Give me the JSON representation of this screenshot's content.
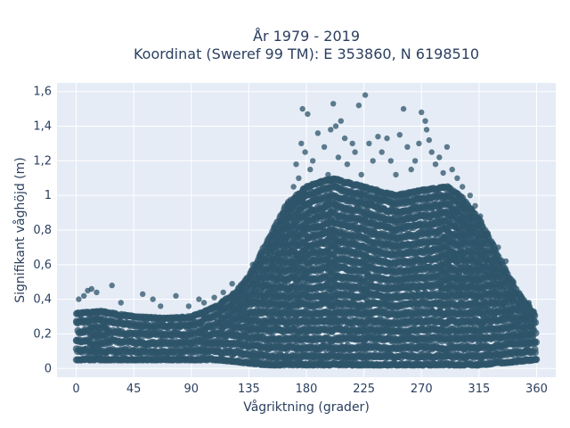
{
  "chart_data": {
    "type": "scatter",
    "title": "År 1979 - 2019",
    "subtitle": "Koordinat (Sweref 99 TM): E 353860, N 6198510",
    "xlabel": "Vågriktning (grader)",
    "ylabel": "Signifikant våghöjd (m)",
    "xlim": [
      -15,
      375
    ],
    "ylim": [
      -0.05,
      1.65
    ],
    "x_ticks": [
      0,
      45,
      90,
      135,
      180,
      225,
      270,
      315,
      360
    ],
    "x_tick_labels": [
      "0",
      "45",
      "90",
      "135",
      "180",
      "225",
      "270",
      "315",
      "360"
    ],
    "y_ticks": [
      0,
      0.2,
      0.4,
      0.6,
      0.8,
      1.0,
      1.2,
      1.4,
      1.6
    ],
    "y_tick_labels": [
      "0",
      "0,2",
      "0,4",
      "0,6",
      "0,8",
      "1",
      "1,2",
      "1,4",
      "1,6"
    ],
    "grid": true,
    "marker_color": "#2e5469",
    "background_color": "#e5ecf6",
    "envelope": {
      "x": [
        0,
        20,
        45,
        70,
        90,
        110,
        125,
        135,
        150,
        165,
        180,
        200,
        225,
        250,
        270,
        290,
        300,
        315,
        330,
        345,
        360
      ],
      "y_min": [
        0.05,
        0.05,
        0.05,
        0.05,
        0.05,
        0.05,
        0.04,
        0.03,
        0.02,
        0.02,
        0.02,
        0.02,
        0.02,
        0.02,
        0.02,
        0.02,
        0.02,
        0.02,
        0.03,
        0.04,
        0.05
      ],
      "y_max": [
        0.32,
        0.33,
        0.3,
        0.29,
        0.3,
        0.36,
        0.44,
        0.53,
        0.74,
        0.95,
        1.05,
        1.1,
        1.05,
        1.0,
        1.03,
        1.05,
        1.0,
        0.86,
        0.65,
        0.44,
        0.3
      ]
    },
    "outliers": [
      {
        "x": 2,
        "y": 0.4
      },
      {
        "x": 6,
        "y": 0.42
      },
      {
        "x": 9,
        "y": 0.45
      },
      {
        "x": 12,
        "y": 0.46
      },
      {
        "x": 16,
        "y": 0.44
      },
      {
        "x": 28,
        "y": 0.48
      },
      {
        "x": 35,
        "y": 0.38
      },
      {
        "x": 52,
        "y": 0.43
      },
      {
        "x": 60,
        "y": 0.4
      },
      {
        "x": 66,
        "y": 0.36
      },
      {
        "x": 78,
        "y": 0.42
      },
      {
        "x": 88,
        "y": 0.36
      },
      {
        "x": 96,
        "y": 0.4
      },
      {
        "x": 100,
        "y": 0.38
      },
      {
        "x": 108,
        "y": 0.41
      },
      {
        "x": 115,
        "y": 0.44
      },
      {
        "x": 122,
        "y": 0.49
      },
      {
        "x": 138,
        "y": 0.6
      },
      {
        "x": 144,
        "y": 0.64
      },
      {
        "x": 152,
        "y": 0.7
      },
      {
        "x": 156,
        "y": 0.76
      },
      {
        "x": 162,
        "y": 0.86
      },
      {
        "x": 168,
        "y": 0.95
      },
      {
        "x": 170,
        "y": 1.05
      },
      {
        "x": 172,
        "y": 1.18
      },
      {
        "x": 174,
        "y": 1.1
      },
      {
        "x": 176,
        "y": 1.3
      },
      {
        "x": 177,
        "y": 1.5
      },
      {
        "x": 179,
        "y": 1.25
      },
      {
        "x": 181,
        "y": 1.47
      },
      {
        "x": 183,
        "y": 1.15
      },
      {
        "x": 185,
        "y": 1.2
      },
      {
        "x": 189,
        "y": 1.36
      },
      {
        "x": 191,
        "y": 1.08
      },
      {
        "x": 194,
        "y": 1.28
      },
      {
        "x": 197,
        "y": 1.12
      },
      {
        "x": 199,
        "y": 1.38
      },
      {
        "x": 201,
        "y": 1.53
      },
      {
        "x": 203,
        "y": 1.4
      },
      {
        "x": 205,
        "y": 1.22
      },
      {
        "x": 207,
        "y": 1.43
      },
      {
        "x": 210,
        "y": 1.33
      },
      {
        "x": 212,
        "y": 1.18
      },
      {
        "x": 216,
        "y": 1.3
      },
      {
        "x": 218,
        "y": 1.25
      },
      {
        "x": 221,
        "y": 1.52
      },
      {
        "x": 223,
        "y": 1.12
      },
      {
        "x": 226,
        "y": 1.58
      },
      {
        "x": 229,
        "y": 1.3
      },
      {
        "x": 232,
        "y": 1.2
      },
      {
        "x": 236,
        "y": 1.34
      },
      {
        "x": 239,
        "y": 1.25
      },
      {
        "x": 243,
        "y": 1.33
      },
      {
        "x": 246,
        "y": 1.2
      },
      {
        "x": 250,
        "y": 1.12
      },
      {
        "x": 253,
        "y": 1.35
      },
      {
        "x": 256,
        "y": 1.5
      },
      {
        "x": 259,
        "y": 1.28
      },
      {
        "x": 262,
        "y": 1.15
      },
      {
        "x": 265,
        "y": 1.2
      },
      {
        "x": 268,
        "y": 1.3
      },
      {
        "x": 270,
        "y": 1.48
      },
      {
        "x": 273,
        "y": 1.43
      },
      {
        "x": 274,
        "y": 1.38
      },
      {
        "x": 276,
        "y": 1.32
      },
      {
        "x": 278,
        "y": 1.25
      },
      {
        "x": 281,
        "y": 1.18
      },
      {
        "x": 284,
        "y": 1.22
      },
      {
        "x": 287,
        "y": 1.13
      },
      {
        "x": 290,
        "y": 1.28
      },
      {
        "x": 294,
        "y": 1.15
      },
      {
        "x": 298,
        "y": 1.1
      },
      {
        "x": 302,
        "y": 1.05
      },
      {
        "x": 308,
        "y": 1.0
      },
      {
        "x": 312,
        "y": 0.94
      },
      {
        "x": 316,
        "y": 0.88
      },
      {
        "x": 322,
        "y": 0.78
      },
      {
        "x": 326,
        "y": 0.72
      },
      {
        "x": 330,
        "y": 0.7
      },
      {
        "x": 336,
        "y": 0.62
      },
      {
        "x": 342,
        "y": 0.5
      },
      {
        "x": 348,
        "y": 0.42
      },
      {
        "x": 354,
        "y": 0.38
      },
      {
        "x": 358,
        "y": 0.33
      }
    ]
  }
}
